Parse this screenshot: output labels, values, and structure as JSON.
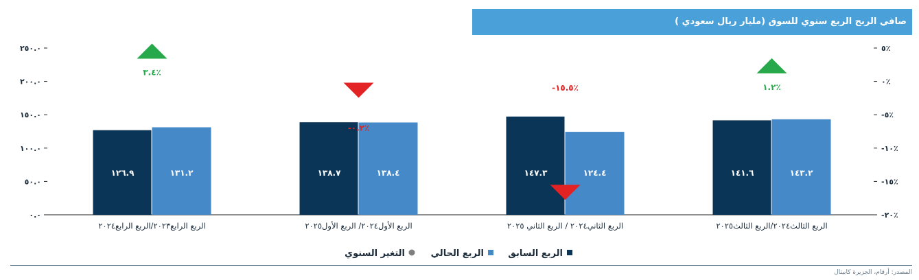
{
  "title": "صافي الربح الربع سنوي للسوق (مليار ريال سعودي )",
  "source": "المصدر: أرقام، الجزيرة كابيتال",
  "colors": {
    "previous": "#0b3557",
    "current": "#4589c9",
    "up": "#27a84a",
    "down": "#e32223",
    "title_bg": "#4aa0d8"
  },
  "chart_data": {
    "type": "bar",
    "categories": [
      "الربع الرابع٢٠٢٣/الربع الرابع٢٠٢٤",
      "الربع الأول٢٠٢٤/ الربع الأول٢٠٢٥",
      "الربع الثاني٢٠٢٤ / الربع الثاني ٢٠٢٥",
      "الربع الثالث٢٠٢٤/الربع الثالث٢٠٢٥"
    ],
    "series": [
      {
        "name": "الربع السابق",
        "values": [
          126.9,
          138.7,
          147.3,
          141.6
        ],
        "labels": [
          "١٢٦.٩",
          "١٣٨.٧",
          "١٤٧.٣",
          "١٤١.٦"
        ]
      },
      {
        "name": "الربع الحالي",
        "values": [
          131.2,
          138.4,
          124.4,
          143.2
        ],
        "labels": [
          "١٣١.٢",
          "١٣٨.٤",
          "١٢٤.٤",
          "١٤٣.٢"
        ]
      }
    ],
    "change": {
      "name": "التغير السنوي",
      "values": [
        3.4,
        -0.2,
        -15.5,
        1.2
      ],
      "labels": [
        "٣.٤٪",
        "-٠.٢٪",
        "-١٥.٥٪",
        "١.٢٪"
      ]
    },
    "y_left": {
      "ylim": [
        0,
        250
      ],
      "ticks": [
        0,
        50,
        100,
        150,
        200,
        250
      ],
      "tick_labels": [
        "٠.٠",
        "٥٠.٠",
        "١٠٠.٠",
        "١٥٠.٠",
        "٢٠٠.٠",
        "٢٥٠.٠"
      ]
    },
    "y_right": {
      "ylim": [
        -20,
        5
      ],
      "ticks": [
        -20,
        -15,
        -10,
        -5,
        0,
        5
      ],
      "tick_labels": [
        "-٢٠٪",
        "-١٥٪",
        "-١٠٪",
        "-٥٪",
        "٠٪",
        "٥٪"
      ]
    },
    "legend_position": "bottom",
    "grid": false
  }
}
